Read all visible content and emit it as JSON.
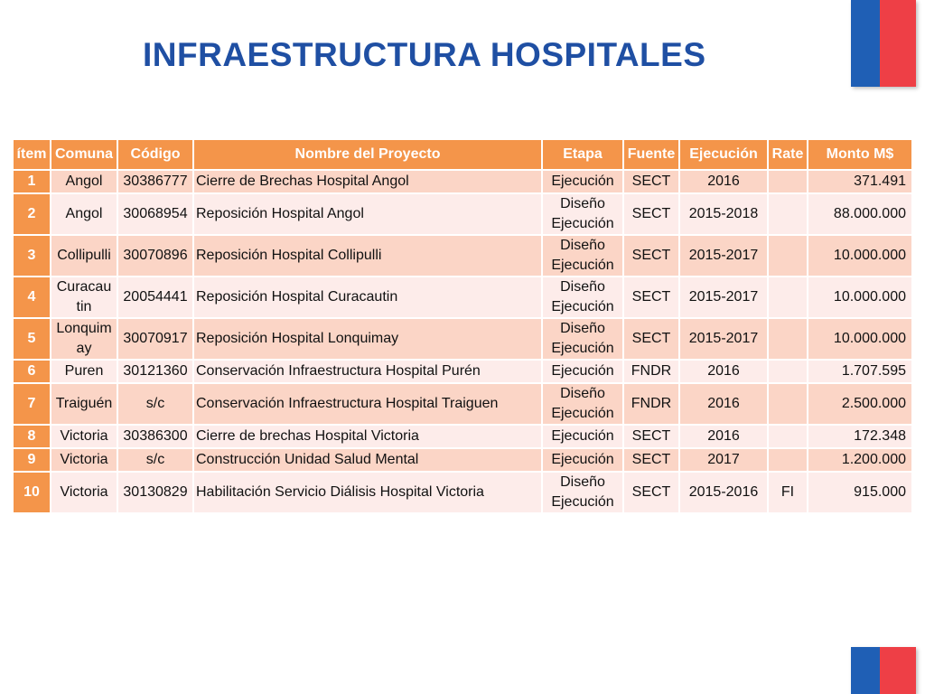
{
  "title": "INFRAESTRUCTURA HOSPITALES",
  "columns": [
    "ítem",
    "Comuna",
    "Código",
    "Nombre del Proyecto",
    "Etapa",
    "Fuente",
    "Ejecución",
    "Rate",
    "Monto M$"
  ],
  "rows": [
    {
      "item": "1",
      "comuna": "Angol",
      "codigo": "30386777",
      "nombre": "Cierre de Brechas Hospital Angol",
      "etapa": "Ejecución",
      "fuente": "SECT",
      "ejecucion": "2016",
      "rate": "",
      "monto": "371.491"
    },
    {
      "item": "2",
      "comuna": "Angol",
      "codigo": "30068954",
      "nombre": "Reposición Hospital Angol",
      "etapa": "Diseño Ejecución",
      "fuente": "SECT",
      "ejecucion": "2015-2018",
      "rate": "",
      "monto": "88.000.000"
    },
    {
      "item": "3",
      "comuna": "Collipulli",
      "codigo": "30070896",
      "nombre": "Reposición Hospital Collipulli",
      "etapa": "Diseño Ejecución",
      "fuente": "SECT",
      "ejecucion": "2015-2017",
      "rate": "",
      "monto": "10.000.000"
    },
    {
      "item": "4",
      "comuna": "Curacau tin",
      "codigo": "20054441",
      "nombre": "Reposición Hospital Curacautin",
      "etapa": "Diseño Ejecución",
      "fuente": "SECT",
      "ejecucion": "2015-2017",
      "rate": "",
      "monto": "10.000.000"
    },
    {
      "item": "5",
      "comuna": "Lonquim ay",
      "codigo": "30070917",
      "nombre": "Reposición Hospital Lonquimay",
      "etapa": "Diseño Ejecución",
      "fuente": "SECT",
      "ejecucion": "2015-2017",
      "rate": "",
      "monto": "10.000.000"
    },
    {
      "item": "6",
      "comuna": "Puren",
      "codigo": "30121360",
      "nombre": "Conservación Infraestructura Hospital Purén",
      "etapa": "Ejecución",
      "fuente": "FNDR",
      "ejecucion": "2016",
      "rate": "",
      "monto": "1.707.595"
    },
    {
      "item": "7",
      "comuna": "Traiguén",
      "codigo": "s/c",
      "nombre": "Conservación Infraestructura Hospital Traiguen",
      "etapa": "Diseño Ejecución",
      "fuente": "FNDR",
      "ejecucion": "2016",
      "rate": "",
      "monto": "2.500.000"
    },
    {
      "item": "8",
      "comuna": "Victoria",
      "codigo": "30386300",
      "nombre": "Cierre de brechas Hospital Victoria",
      "etapa": "Ejecución",
      "fuente": "SECT",
      "ejecucion": "2016",
      "rate": "",
      "monto": "172.348"
    },
    {
      "item": "9",
      "comuna": "Victoria",
      "codigo": "s/c",
      "nombre": "Construcción Unidad Salud Mental",
      "etapa": "Ejecución",
      "fuente": "SECT",
      "ejecucion": "2017",
      "rate": "",
      "monto": "1.200.000"
    },
    {
      "item": "10",
      "comuna": "Victoria",
      "codigo": "30130829",
      "nombre": "Habilitación Servicio Diálisis Hospital Victoria",
      "etapa": "Diseño Ejecución",
      "fuente": "SECT",
      "ejecucion": "2015-2016",
      "rate": "FI",
      "monto": "915.000"
    }
  ],
  "colors": {
    "title": "#1f4fa3",
    "header": "#f4954a",
    "row_odd": "#fbd5c6",
    "row_even": "#fdecea",
    "flag_blue": "#1f5fb5",
    "flag_red": "#ee3f46"
  }
}
